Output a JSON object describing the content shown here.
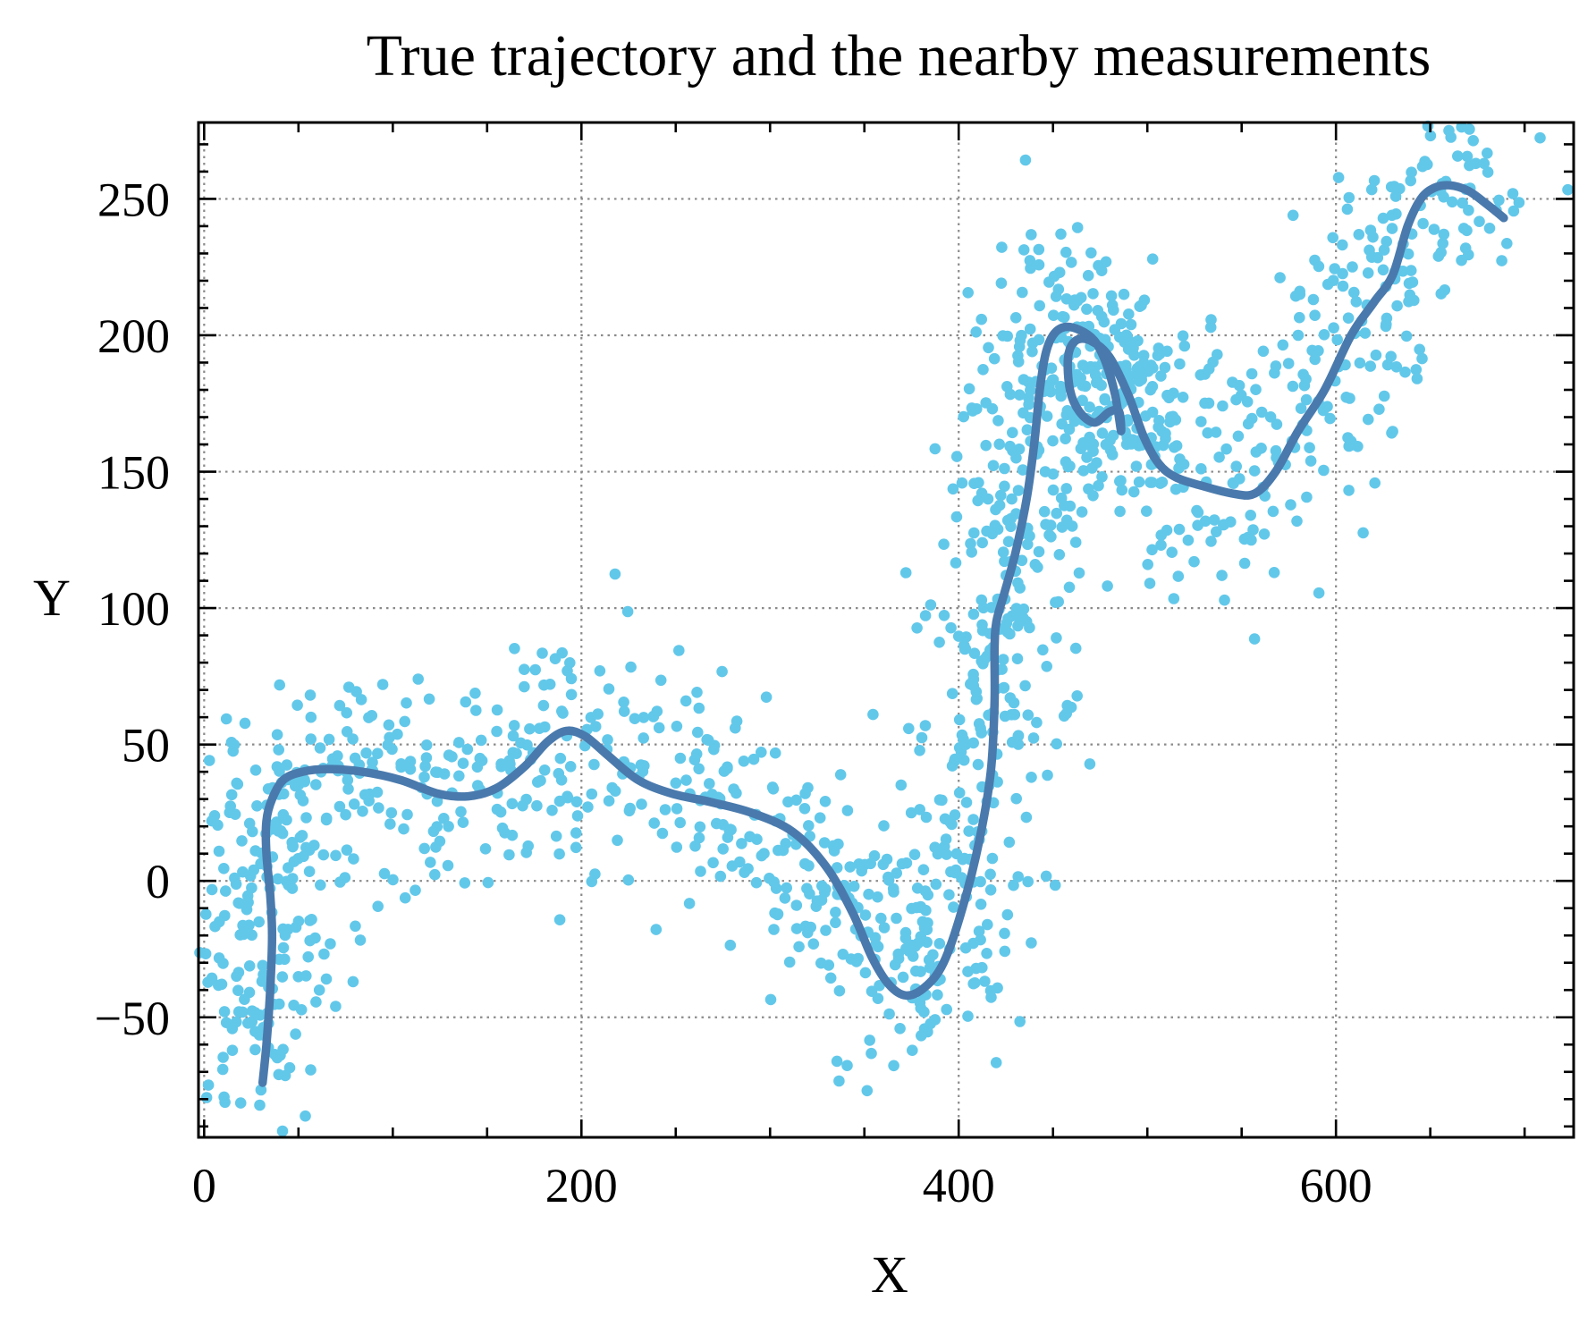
{
  "chart_data": {
    "type": "scatter",
    "title": "True trajectory and the nearby measurements",
    "xlabel": "X",
    "ylabel": "Y",
    "xlim": [
      -3,
      726
    ],
    "ylim": [
      -94,
      278
    ],
    "xticks": [
      0,
      200,
      400,
      600
    ],
    "xtick_labels": [
      "0",
      "200",
      "400",
      "600"
    ],
    "yticks": [
      -50,
      0,
      50,
      100,
      150,
      200,
      250
    ],
    "ytick_labels": [
      "−50",
      "0",
      "50",
      "100",
      "150",
      "200",
      "250"
    ],
    "grid": true,
    "legend": "none",
    "colors": {
      "measurements": "#62c8ea",
      "trajectory": "#4a7aad"
    },
    "series": [
      {
        "kind": "line",
        "x": [
          31,
          33,
          35,
          36,
          35,
          33,
          33,
          36,
          42,
          52,
          66,
          84,
          104,
          124,
          140,
          155,
          170,
          182,
          192,
          202,
          214,
          230,
          248,
          268,
          290,
          312,
          330,
          344,
          354,
          363,
          372,
          382,
          392,
          402,
          411,
          417,
          419,
          419,
          420,
          424,
          430,
          436,
          440,
          443,
          446,
          450,
          456,
          464,
          472,
          478,
          483,
          486,
          485,
          480,
          472,
          464,
          459,
          458,
          462,
          470,
          480,
          490,
          498,
          506,
          515,
          528,
          545,
          557,
          568,
          580,
          594,
          608,
          620,
          630,
          638,
          645,
          652,
          660,
          670,
          680,
          689
        ],
        "y": [
          -74,
          -60,
          -40,
          -20,
          -5,
          10,
          22,
          30,
          37,
          40,
          41,
          40,
          37,
          32,
          31,
          34,
          42,
          51,
          55,
          53,
          46,
          37,
          32,
          29,
          25,
          18,
          5,
          -12,
          -28,
          -38,
          -42,
          -39,
          -30,
          -10,
          15,
          40,
          65,
          85,
          95,
          105,
          120,
          140,
          160,
          180,
          193,
          200,
          203,
          202,
          198,
          190,
          178,
          165,
          172,
          172,
          168,
          172,
          180,
          192,
          198,
          198,
          192,
          178,
          163,
          153,
          148,
          145,
          142,
          142,
          150,
          165,
          180,
          200,
          212,
          222,
          240,
          250,
          254,
          255,
          253,
          248,
          243
        ]
      },
      {
        "kind": "scatter",
        "n_points": 1500
      }
    ]
  }
}
